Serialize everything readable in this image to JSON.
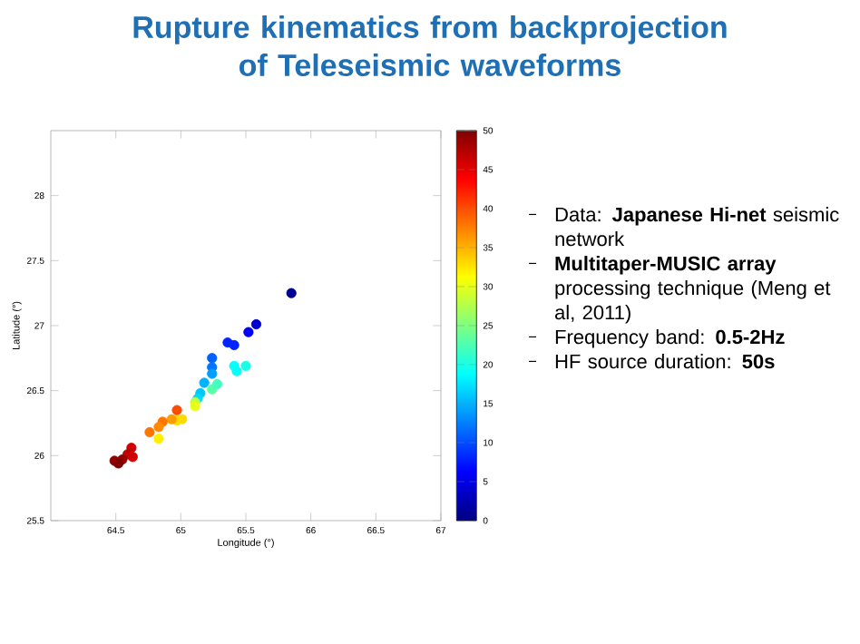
{
  "chart_data": {
    "type": "scatter",
    "title": "Rupture kinematics from backprojection of Teleseismic waveforms",
    "xlabel": "Longitude (°)",
    "ylabel": "Latitude (°)",
    "xlim": [
      64,
      67
    ],
    "ylim": [
      25.5,
      28.5
    ],
    "xticks": [
      64.5,
      65,
      65.5,
      66,
      66.5,
      67
    ],
    "yticks": [
      25.5,
      26,
      26.5,
      27,
      27.5,
      28
    ],
    "clim": [
      0,
      50
    ],
    "cticks": [
      0,
      5,
      10,
      15,
      20,
      25,
      30,
      35,
      40,
      45,
      50
    ],
    "marker": "circle",
    "grid": false,
    "x": [
      65.85,
      65.58,
      65.52,
      65.36,
      65.41,
      65.24,
      65.24,
      65.24,
      65.41,
      65.43,
      65.5,
      65.18,
      65.15,
      65.13,
      65.24,
      65.28,
      65.11,
      65.11,
      64.97,
      65.01,
      64.97,
      64.93,
      64.86,
      64.83,
      64.83,
      64.76,
      64.62,
      64.59,
      64.55,
      64.49,
      64.52,
      64.63
    ],
    "values": [
      27.25,
      27.01,
      26.95,
      26.87,
      26.85,
      26.75,
      26.68,
      26.63,
      26.69,
      26.65,
      26.69,
      26.56,
      26.48,
      26.44,
      26.51,
      26.55,
      26.41,
      26.38,
      26.35,
      26.28,
      26.27,
      26.28,
      26.26,
      26.22,
      26.13,
      26.18,
      26.06,
      26.01,
      25.97,
      25.96,
      25.94,
      25.99
    ],
    "cvalues": [
      1,
      4,
      6,
      8,
      8,
      11,
      12,
      14,
      19,
      19,
      20,
      15,
      16,
      17,
      23,
      22,
      28,
      30,
      40,
      33,
      33,
      36,
      38,
      37,
      32,
      38,
      46,
      47,
      49,
      49,
      50,
      46
    ],
    "annotations": [
      "Data: **Japanese Hi-net** seismic network",
      "**Multitaper-MUSIC array** processing technique (Meng et al, 2011)",
      "Frequency band:  **0.5-2Hz**",
      "HF source duration: **50s**"
    ]
  }
}
